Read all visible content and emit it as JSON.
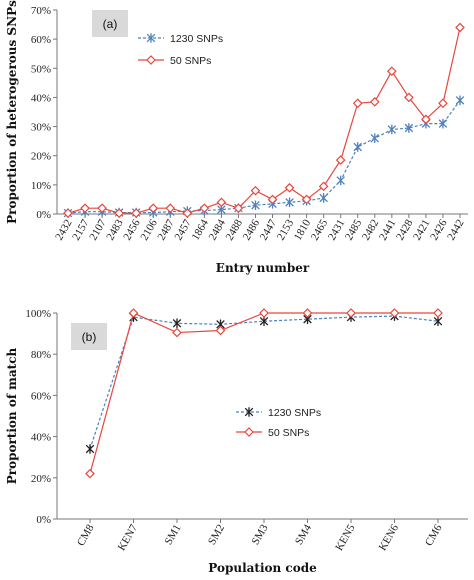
{
  "chart_data": [
    {
      "type": "line",
      "panel_label": "(a)",
      "xlabel": "Entry number",
      "ylabel": "Proportion  of heterogerous SNPs",
      "ylim": [
        0,
        70
      ],
      "yticks": [
        "0%",
        "10%",
        "20%",
        "30%",
        "40%",
        "50%",
        "60%",
        "70%"
      ],
      "categories": [
        "2432",
        "2157",
        "2107",
        "2483",
        "2456",
        "2106",
        "2487",
        "2457",
        "1864",
        "2484",
        "2488",
        "2486",
        "2447",
        "2153",
        "1810",
        "2465",
        "2431",
        "2485",
        "2482",
        "2441",
        "2428",
        "2421",
        "2426",
        "2442"
      ],
      "grid": false,
      "legend_position": "top-center",
      "series": [
        {
          "name": "1230 SNPs",
          "color": "#4f81bd",
          "marker": "asterisk",
          "dashed": true,
          "values": [
            0.3,
            0.8,
            0.8,
            0.5,
            0.5,
            0.5,
            0.8,
            1.0,
            1.2,
            1.5,
            2.0,
            3.0,
            3.5,
            4.0,
            4.5,
            5.5,
            11.5,
            23,
            26,
            29,
            29.5,
            31,
            31,
            39
          ]
        },
        {
          "name": "50 SNPs",
          "color": "#e8473c",
          "marker": "diamond",
          "dashed": false,
          "values": [
            0.3,
            2.0,
            2.0,
            0.3,
            0.3,
            2.0,
            2.0,
            0.3,
            2.0,
            4.0,
            2.0,
            8.0,
            5.0,
            9.0,
            5.0,
            9.5,
            18.5,
            38,
            38.5,
            49,
            40,
            32.5,
            38,
            64
          ]
        }
      ]
    },
    {
      "type": "line",
      "panel_label": "(b)",
      "xlabel": "Population  code",
      "ylabel": "Proportion  of match",
      "ylim": [
        0,
        100
      ],
      "yticks": [
        "0%",
        "20%",
        "40%",
        "60%",
        "80%",
        "100%"
      ],
      "categories": [
        "CM8",
        "KEN7",
        "SM1",
        "SM2",
        "SM3",
        "SM4",
        "KEN5",
        "KEN6",
        "CM6"
      ],
      "grid": false,
      "legend_position": "center",
      "series": [
        {
          "name": "1230 SNPs",
          "color": "#4f81bd",
          "marker": "asterisk",
          "dashed": true,
          "values": [
            34,
            98,
            95,
            94.5,
            96,
            97,
            98,
            98.5,
            96
          ]
        },
        {
          "name": "50 SNPs",
          "color": "#e8473c",
          "marker": "diamond",
          "dashed": false,
          "values": [
            22,
            100,
            90.5,
            91.5,
            100,
            100,
            100,
            100,
            100
          ]
        }
      ]
    }
  ]
}
